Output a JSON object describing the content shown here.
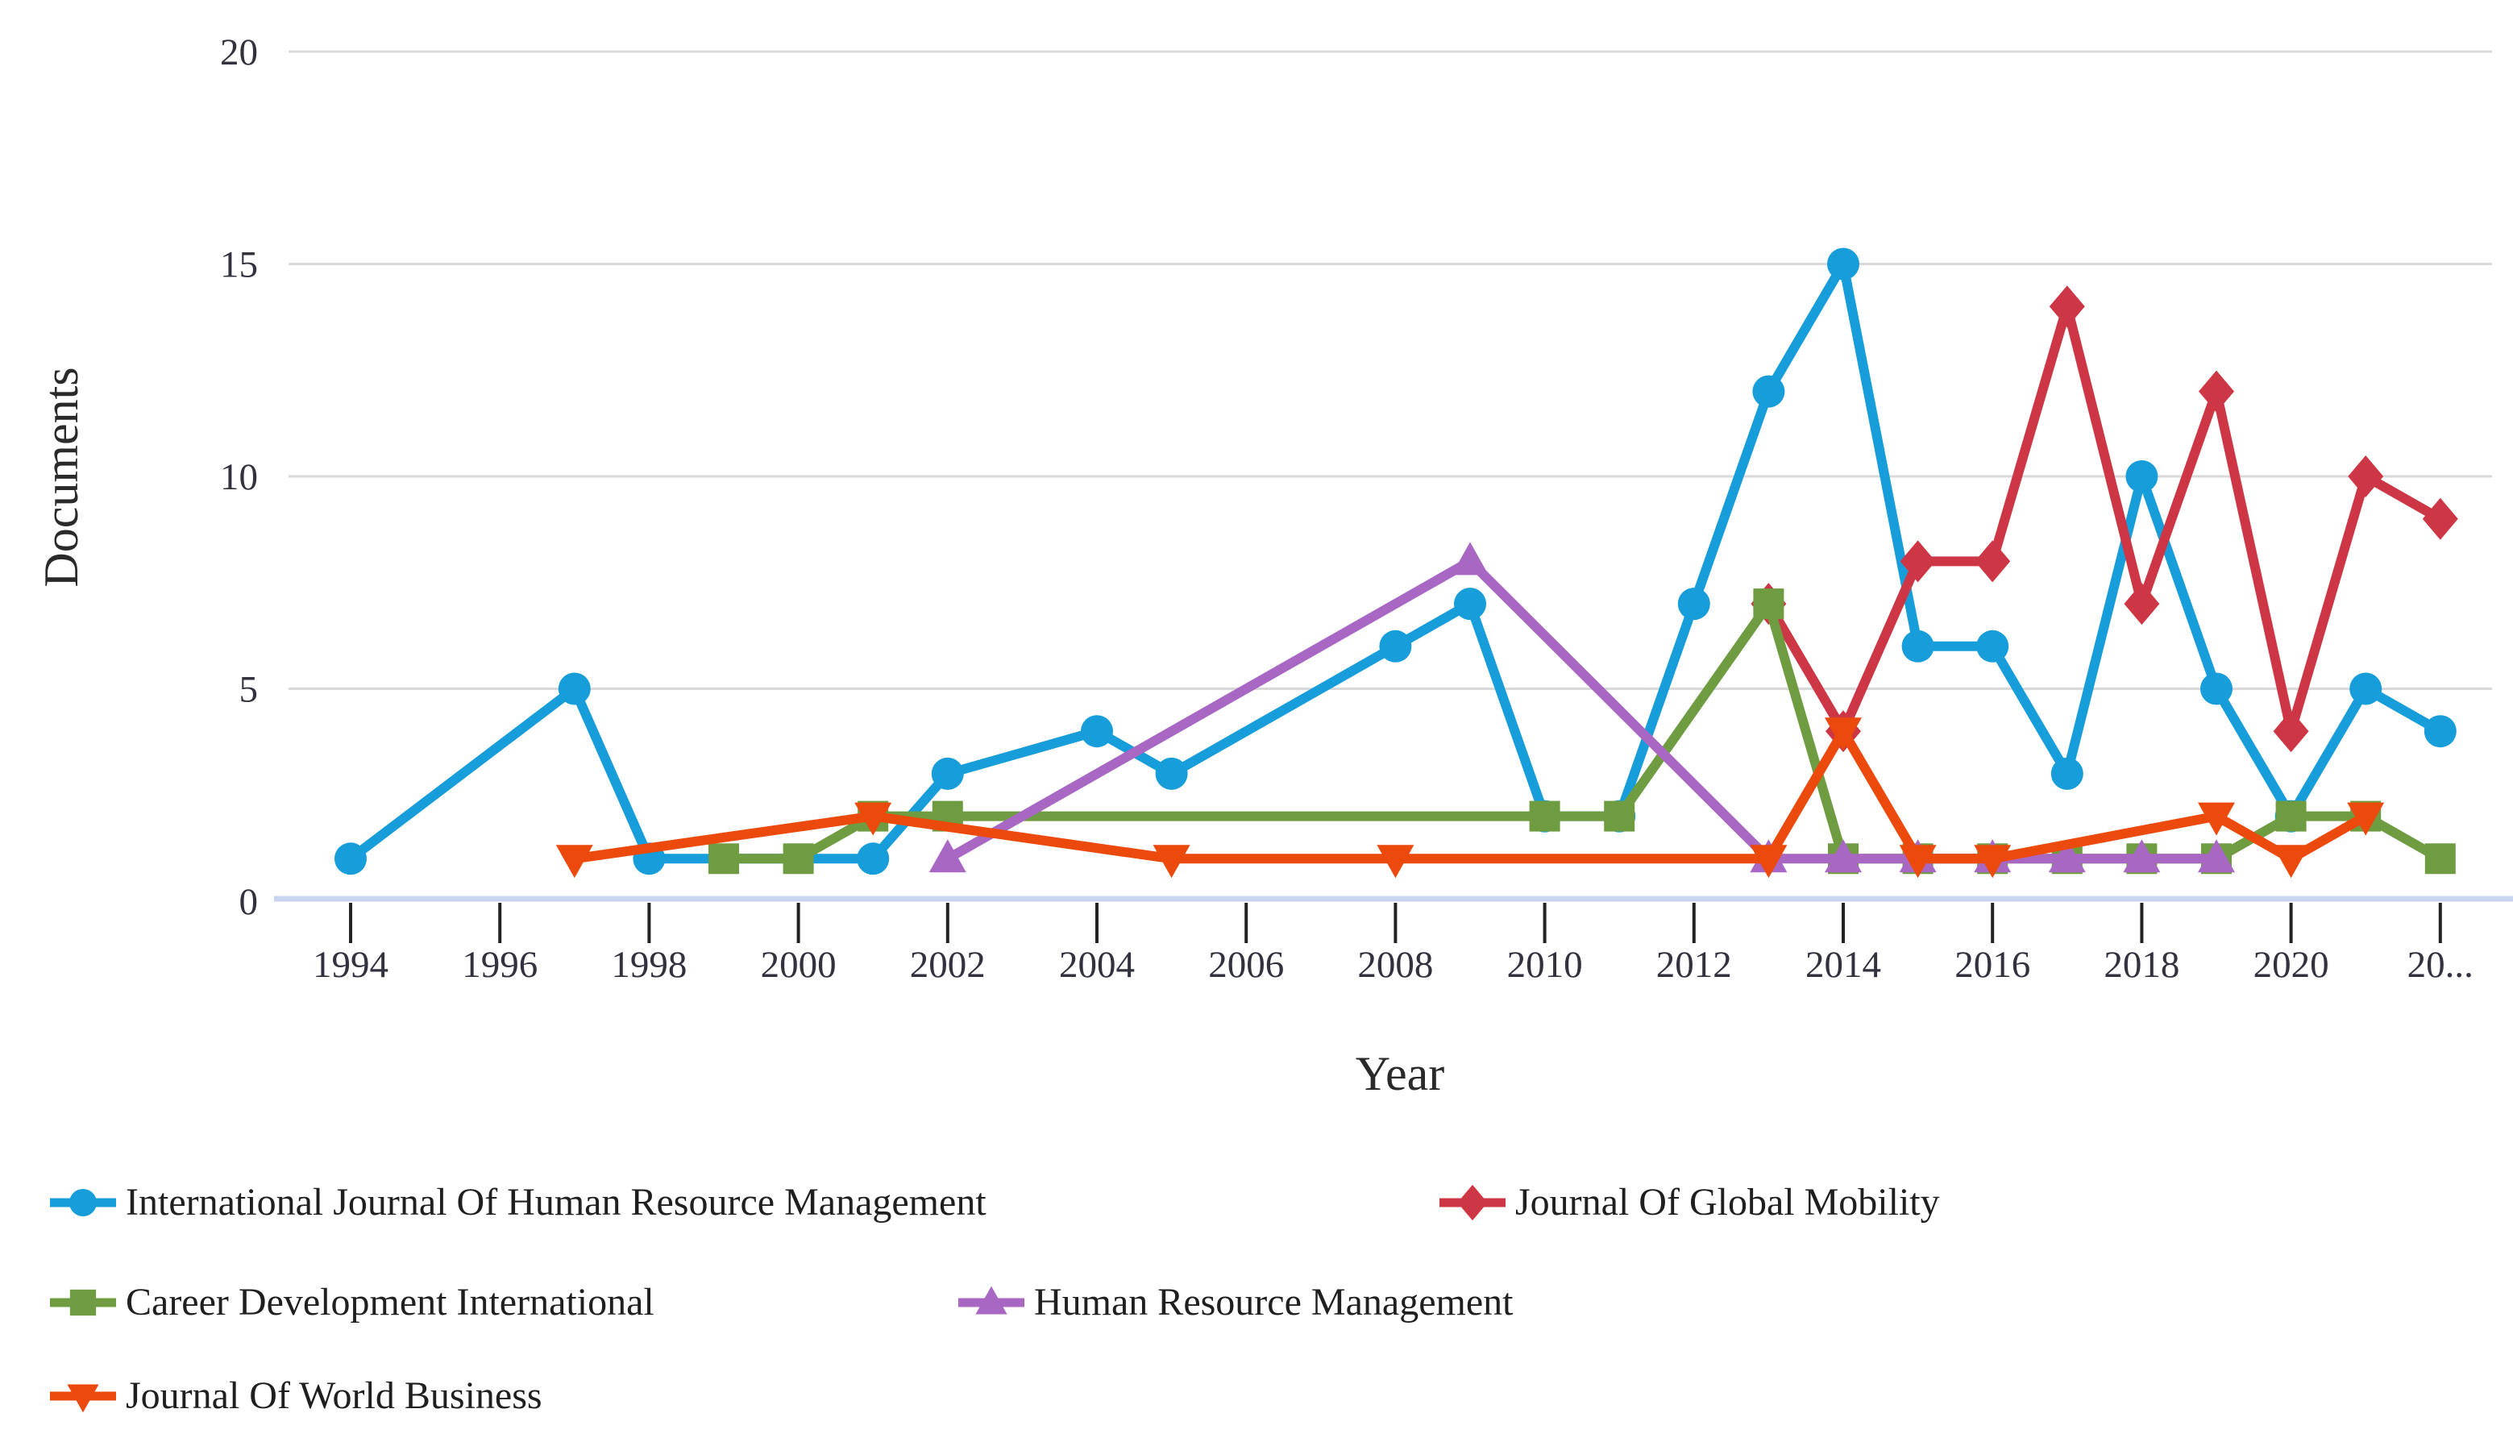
{
  "chart_data": {
    "type": "line",
    "title": "",
    "xlabel": "Year",
    "ylabel": "Documents",
    "xlim": [
      1993,
      2023
    ],
    "ylim": [
      0,
      20
    ],
    "grid": "horizontal",
    "legend_position": "bottom-left",
    "x_ticks": [
      {
        "year": 1994,
        "label": "1994"
      },
      {
        "year": 1996,
        "label": "1996"
      },
      {
        "year": 1998,
        "label": "1998"
      },
      {
        "year": 2000,
        "label": "2000"
      },
      {
        "year": 2002,
        "label": "2002"
      },
      {
        "year": 2004,
        "label": "2004"
      },
      {
        "year": 2006,
        "label": "2006"
      },
      {
        "year": 2008,
        "label": "2008"
      },
      {
        "year": 2010,
        "label": "2010"
      },
      {
        "year": 2012,
        "label": "2012"
      },
      {
        "year": 2014,
        "label": "2014"
      },
      {
        "year": 2016,
        "label": "2016"
      },
      {
        "year": 2018,
        "label": "2018"
      },
      {
        "year": 2020,
        "label": "2020"
      },
      {
        "year": 2022,
        "label": "20..."
      }
    ],
    "y_ticks": [
      {
        "value": 0,
        "label": "0"
      },
      {
        "value": 5,
        "label": "5"
      },
      {
        "value": 10,
        "label": "10"
      },
      {
        "value": 15,
        "label": "15"
      },
      {
        "value": 20,
        "label": "20"
      }
    ],
    "series": [
      {
        "name": "International Journal Of Human Resource Management",
        "color": "#179DD9",
        "marker": "circle",
        "points": [
          [
            1994,
            1
          ],
          [
            1997,
            5
          ],
          [
            1998,
            1
          ],
          [
            2001,
            1
          ],
          [
            2002,
            3
          ],
          [
            2004,
            4
          ],
          [
            2005,
            3
          ],
          [
            2008,
            6
          ],
          [
            2009,
            7
          ],
          [
            2010,
            2
          ],
          [
            2011,
            2
          ],
          [
            2012,
            7
          ],
          [
            2013,
            12
          ],
          [
            2014,
            15
          ],
          [
            2015,
            6
          ],
          [
            2016,
            6
          ],
          [
            2017,
            3
          ],
          [
            2018,
            10
          ],
          [
            2019,
            5
          ],
          [
            2020,
            2
          ],
          [
            2021,
            5
          ],
          [
            2022,
            4
          ]
        ]
      },
      {
        "name": "Journal Of Global Mobility",
        "color": "#CD3745",
        "marker": "diamond",
        "points": [
          [
            2013,
            7
          ],
          [
            2014,
            4
          ],
          [
            2015,
            8
          ],
          [
            2016,
            8
          ],
          [
            2017,
            14
          ],
          [
            2018,
            7
          ],
          [
            2019,
            12
          ],
          [
            2020,
            4
          ],
          [
            2021,
            10
          ],
          [
            2022,
            9
          ]
        ]
      },
      {
        "name": "Career Development International",
        "color": "#6F9C41",
        "marker": "square",
        "points": [
          [
            1999,
            1
          ],
          [
            2000,
            1
          ],
          [
            2001,
            2
          ],
          [
            2002,
            2
          ],
          [
            2010,
            2
          ],
          [
            2011,
            2
          ],
          [
            2013,
            7
          ],
          [
            2014,
            1
          ],
          [
            2015,
            1
          ],
          [
            2016,
            1
          ],
          [
            2017,
            1
          ],
          [
            2018,
            1
          ],
          [
            2019,
            1
          ],
          [
            2020,
            2
          ],
          [
            2021,
            2
          ],
          [
            2022,
            1
          ]
        ]
      },
      {
        "name": "Human Resource Management",
        "color": "#A767C2",
        "marker": "triangle-up",
        "points": [
          [
            2002,
            1
          ],
          [
            2009,
            8
          ],
          [
            2013,
            1
          ],
          [
            2014,
            1
          ],
          [
            2015,
            1
          ],
          [
            2016,
            1
          ],
          [
            2017,
            1
          ],
          [
            2018,
            1
          ],
          [
            2019,
            1
          ]
        ]
      },
      {
        "name": "Journal Of World Business",
        "color": "#EC4A0D",
        "marker": "triangle-down",
        "points": [
          [
            1997,
            1
          ],
          [
            2001,
            2
          ],
          [
            2005,
            1
          ],
          [
            2008,
            1
          ],
          [
            2013,
            1
          ],
          [
            2014,
            4
          ],
          [
            2015,
            1
          ],
          [
            2016,
            1
          ],
          [
            2019,
            2
          ],
          [
            2020,
            1
          ],
          [
            2021,
            2
          ]
        ]
      }
    ],
    "style_colors": {
      "gridline": "#D9D9D9",
      "axis_line": "#C9D5EE",
      "tick_mark": "#222222",
      "tick_label": "#32323f",
      "axis_title": "#2a2a2a",
      "legend_text": "#1f1f1f",
      "background": "#ffffff"
    }
  }
}
